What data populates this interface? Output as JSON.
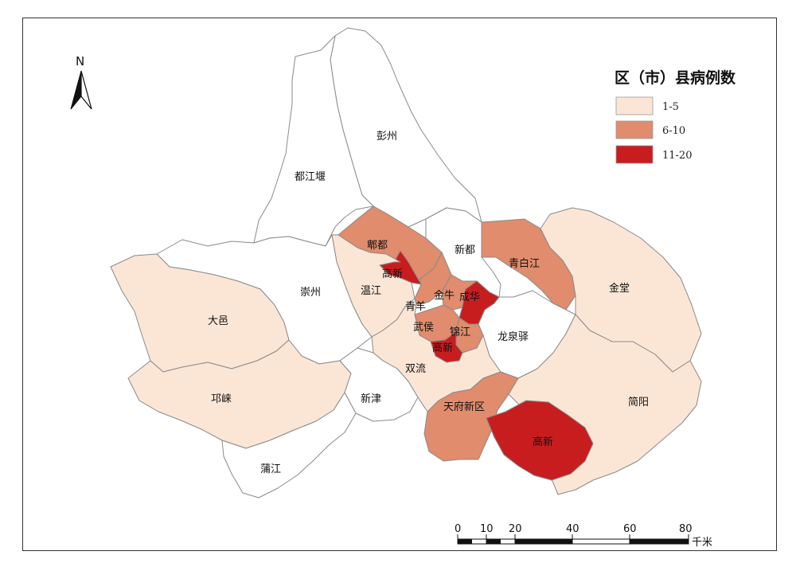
{
  "north_arrow": {
    "label": "N",
    "icon": "north-arrow-icon"
  },
  "legend": {
    "title": "区（市）县病例数",
    "classes": [
      {
        "label": "1-5",
        "color": "#fbe6d6"
      },
      {
        "label": "6-10",
        "color": "#e08c6d"
      },
      {
        "label": "11-20",
        "color": "#c81d1f"
      }
    ],
    "no_data_color": "#ffffff"
  },
  "scale_bar": {
    "ticks": [
      "0",
      "10",
      "20",
      "40",
      "60",
      "80"
    ],
    "unit": "千米"
  },
  "districts": [
    {
      "name": "彭州",
      "class": "none"
    },
    {
      "name": "都江堰",
      "class": "none"
    },
    {
      "name": "郫都",
      "class": "6-10"
    },
    {
      "name": "高新",
      "class": "11-20",
      "note": "northwest"
    },
    {
      "name": "新都",
      "class": "none"
    },
    {
      "name": "青白江",
      "class": "6-10"
    },
    {
      "name": "金堂",
      "class": "1-5"
    },
    {
      "name": "温江",
      "class": "1-5"
    },
    {
      "name": "崇州",
      "class": "none"
    },
    {
      "name": "大邑",
      "class": "1-5"
    },
    {
      "name": "青羊",
      "class": "6-10"
    },
    {
      "name": "金牛",
      "class": "6-10"
    },
    {
      "name": "成华",
      "class": "11-20"
    },
    {
      "name": "武侯",
      "class": "6-10"
    },
    {
      "name": "锦江",
      "class": "6-10"
    },
    {
      "name": "高新",
      "class": "11-20",
      "note": "central"
    },
    {
      "name": "龙泉驿",
      "class": "none"
    },
    {
      "name": "双流",
      "class": "1-5"
    },
    {
      "name": "邛崃",
      "class": "1-5"
    },
    {
      "name": "新津",
      "class": "none"
    },
    {
      "name": "天府新区",
      "class": "6-10"
    },
    {
      "name": "简阳",
      "class": "1-5"
    },
    {
      "name": "高新",
      "class": "11-20",
      "note": "southeast"
    },
    {
      "name": "蒲江",
      "class": "none"
    }
  ]
}
